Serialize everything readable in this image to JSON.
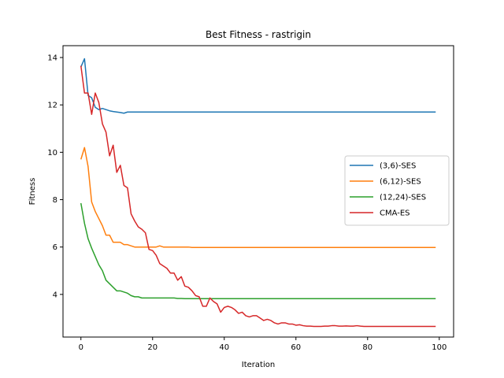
{
  "chart_data": {
    "type": "line",
    "title": "Best Fitness - rastrigin",
    "xlabel": "Iteration",
    "ylabel": "Fitness",
    "xlim": [
      -5,
      104
    ],
    "ylim": [
      2.2,
      14.5
    ],
    "xticks": [
      0,
      20,
      40,
      60,
      80,
      100
    ],
    "yticks": [
      4,
      6,
      8,
      10,
      12,
      14
    ],
    "grid": false,
    "legend_position": "center-right",
    "series": [
      {
        "name": "(3,6)-SES",
        "color": "#1f77b4",
        "y": [
          13.6,
          13.95,
          12.4,
          12.3,
          11.9,
          11.8,
          11.85,
          11.8,
          11.75,
          11.72,
          11.7,
          11.68,
          11.65,
          11.7,
          11.7,
          11.7,
          11.7,
          11.7,
          11.7,
          11.7
        ],
        "y_tail_value": 11.7
      },
      {
        "name": "(6,12)-SES",
        "color": "#ff7f0e",
        "y": [
          9.7,
          10.2,
          9.4,
          7.9,
          7.5,
          7.2,
          6.9,
          6.5,
          6.5,
          6.2,
          6.2,
          6.2,
          6.1,
          6.1,
          6.05,
          6.0,
          6.0,
          6.0,
          6.0,
          6.0,
          6.0,
          6.0,
          6.05,
          6.0,
          6.0,
          6.0,
          6.0,
          6.0,
          6.0,
          6.0,
          6.0
        ],
        "y_tail_value": 5.98
      },
      {
        "name": "(12,24)-SES",
        "color": "#2ca02c",
        "y": [
          7.85,
          7.0,
          6.35,
          5.95,
          5.6,
          5.25,
          5.0,
          4.6,
          4.45,
          4.3,
          4.15,
          4.15,
          4.1,
          4.05,
          3.95,
          3.9,
          3.9,
          3.85,
          3.85,
          3.85,
          3.85,
          3.85,
          3.85,
          3.85,
          3.85,
          3.85,
          3.85,
          3.83,
          3.83,
          3.82,
          3.82
        ],
        "y_tail_value": 3.82
      },
      {
        "name": "CMA-ES",
        "color": "#d62728",
        "y": [
          13.65,
          12.5,
          12.5,
          11.6,
          12.5,
          12.1,
          11.2,
          10.85,
          9.85,
          10.3,
          9.15,
          9.45,
          8.6,
          8.5,
          7.4,
          7.1,
          6.85,
          6.75,
          6.6,
          5.9,
          5.85,
          5.65,
          5.3,
          5.2,
          5.1,
          4.9,
          4.9,
          4.6,
          4.75,
          4.35,
          4.3,
          4.15,
          3.95,
          3.9,
          3.5,
          3.5,
          3.85,
          3.7,
          3.6,
          3.25,
          3.45,
          3.5,
          3.45,
          3.35,
          3.2,
          3.25,
          3.1,
          3.05,
          3.1,
          3.1,
          3.0,
          2.9,
          2.95,
          2.9,
          2.8,
          2.75,
          2.8,
          2.8,
          2.75,
          2.75,
          2.7,
          2.72,
          2.68,
          2.66,
          2.66,
          2.65,
          2.65,
          2.65,
          2.66,
          2.66,
          2.68,
          2.68,
          2.66,
          2.66,
          2.67,
          2.66,
          2.66,
          2.68,
          2.66,
          2.65
        ],
        "y_tail_value": 2.65
      }
    ],
    "n_points": 100
  }
}
